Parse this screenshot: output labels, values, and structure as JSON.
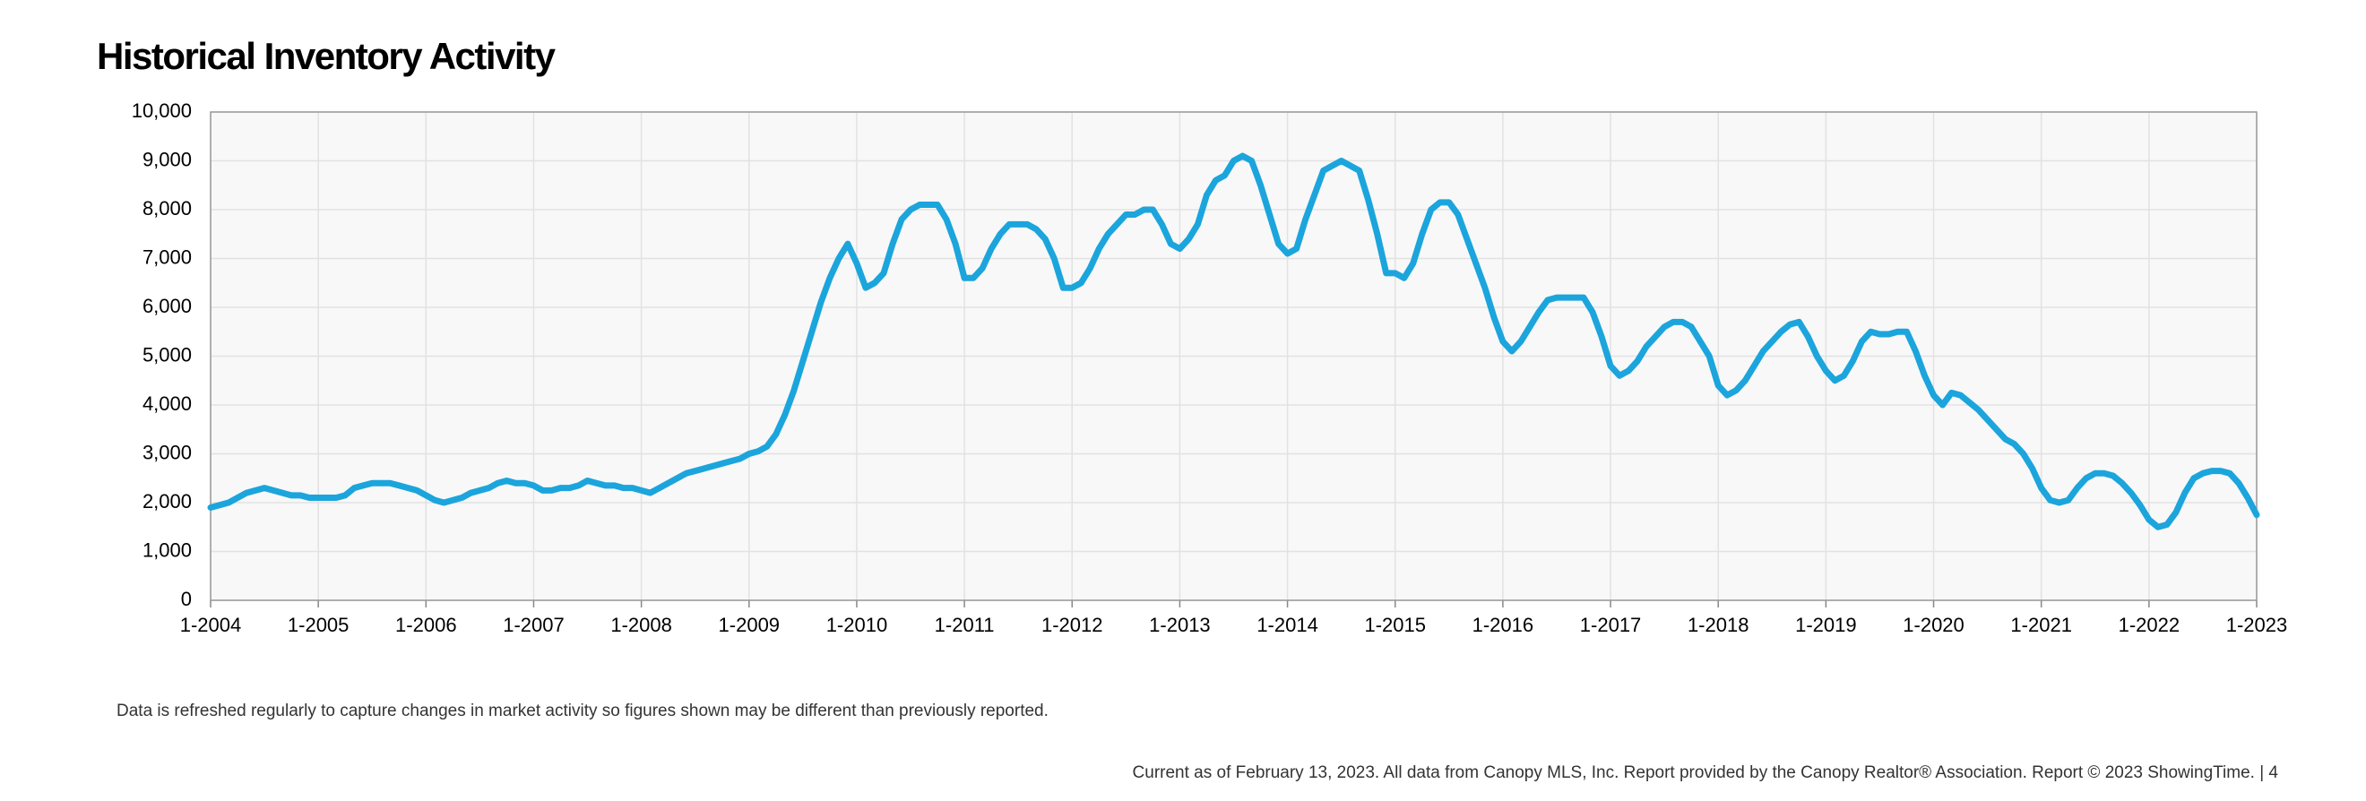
{
  "chart_data": {
    "type": "line",
    "title": "Historical Inventory Activity",
    "note": "Data is refreshed regularly to capture changes in market activity so figures shown may be different than previously reported.",
    "footer": "Current as of February 13, 2023. All data from Canopy MLS, Inc. Report provided by the Canopy Realtor® Association. Report © 2023 ShowingTime.  |  4",
    "color": "#1ba5dc",
    "grid": true,
    "categories": [
      "1-2004",
      null,
      null,
      null,
      null,
      null,
      null,
      null,
      null,
      null,
      null,
      null,
      "1-2005",
      null,
      null,
      null,
      null,
      null,
      null,
      null,
      null,
      null,
      null,
      null,
      "1-2006",
      null,
      null,
      null,
      null,
      null,
      null,
      null,
      null,
      null,
      null,
      null,
      "1-2007",
      null,
      null,
      null,
      null,
      null,
      null,
      null,
      null,
      null,
      null,
      null,
      "1-2008",
      null,
      null,
      null,
      null,
      null,
      null,
      null,
      null,
      null,
      null,
      null,
      "1-2009",
      null,
      null,
      null,
      null,
      null,
      null,
      null,
      null,
      null,
      null,
      null,
      "1-2010",
      null,
      null,
      null,
      null,
      null,
      null,
      null,
      null,
      null,
      null,
      null,
      "1-2011",
      null,
      null,
      null,
      null,
      null,
      null,
      null,
      null,
      null,
      null,
      null,
      "1-2012",
      null,
      null,
      null,
      null,
      null,
      null,
      null,
      null,
      null,
      null,
      null,
      "1-2013",
      null,
      null,
      null,
      null,
      null,
      null,
      null,
      null,
      null,
      null,
      null,
      "1-2014",
      null,
      null,
      null,
      null,
      null,
      null,
      null,
      null,
      null,
      null,
      null,
      "1-2015",
      null,
      null,
      null,
      null,
      null,
      null,
      null,
      null,
      null,
      null,
      null,
      "1-2016",
      null,
      null,
      null,
      null,
      null,
      null,
      null,
      null,
      null,
      null,
      null,
      "1-2017",
      null,
      null,
      null,
      null,
      null,
      null,
      null,
      null,
      null,
      null,
      null,
      "1-2018",
      null,
      null,
      null,
      null,
      null,
      null,
      null,
      null,
      null,
      null,
      null,
      "1-2019",
      null,
      null,
      null,
      null,
      null,
      null,
      null,
      null,
      null,
      null,
      null,
      "1-2020",
      null,
      null,
      null,
      null,
      null,
      null,
      null,
      null,
      null,
      null,
      null,
      "1-2021",
      null,
      null,
      null,
      null,
      null,
      null,
      null,
      null,
      null,
      null,
      null,
      "1-2022",
      null,
      null,
      null,
      null,
      null,
      null,
      null,
      null,
      null,
      null,
      null,
      "1-2023"
    ],
    "values": [
      1900,
      1950,
      2000,
      2100,
      2200,
      2250,
      2300,
      2250,
      2200,
      2150,
      2150,
      2100,
      2100,
      2100,
      2100,
      2150,
      2300,
      2350,
      2400,
      2400,
      2400,
      2350,
      2300,
      2250,
      2150,
      2050,
      2000,
      2050,
      2100,
      2200,
      2250,
      2300,
      2400,
      2450,
      2400,
      2400,
      2350,
      2250,
      2250,
      2300,
      2300,
      2350,
      2450,
      2400,
      2350,
      2350,
      2300,
      2300,
      2250,
      2200,
      2300,
      2400,
      2500,
      2600,
      2650,
      2700,
      2750,
      2800,
      2850,
      2900,
      3000,
      3050,
      3150,
      3400,
      3800,
      4300,
      4900,
      5500,
      6100,
      6600,
      7000,
      7300,
      6900,
      6400,
      6500,
      6700,
      7300,
      7800,
      8000,
      8100,
      8100,
      8100,
      7800,
      7300,
      6600,
      6600,
      6800,
      7200,
      7500,
      7700,
      7700,
      7700,
      7600,
      7400,
      7000,
      6400,
      6400,
      6500,
      6800,
      7200,
      7500,
      7700,
      7900,
      7900,
      8000,
      8000,
      7700,
      7300,
      7200,
      7400,
      7700,
      8300,
      8600,
      8700,
      9000,
      9100,
      9000,
      8500,
      7900,
      7300,
      7100,
      7200,
      7800,
      8300,
      8800,
      8900,
      9000,
      8900,
      8800,
      8200,
      7500,
      6700,
      6700,
      6600,
      6900,
      7500,
      8000,
      8150,
      8150,
      7900,
      7400,
      6900,
      6400,
      5800,
      5300,
      5100,
      5300,
      5600,
      5900,
      6150,
      6200,
      6200,
      6200,
      6200,
      5900,
      5400,
      4800,
      4600,
      4700,
      4900,
      5200,
      5400,
      5600,
      5700,
      5700,
      5600,
      5300,
      5000,
      4400,
      4200,
      4300,
      4500,
      4800,
      5100,
      5300,
      5500,
      5650,
      5700,
      5400,
      5000,
      4700,
      4500,
      4600,
      4900,
      5300,
      5500,
      5450,
      5450,
      5500,
      5500,
      5100,
      4600,
      4200,
      4000,
      4250,
      4200,
      4050,
      3900,
      3700,
      3500,
      3300,
      3200,
      3000,
      2700,
      2300,
      2050,
      2000,
      2050,
      2300,
      2500,
      2600,
      2600,
      2550,
      2400,
      2200,
      1950,
      1650,
      1500,
      1550,
      1800,
      2200,
      2500,
      2600,
      2650,
      2650,
      2600,
      2400,
      2100,
      1750
    ],
    "ylim": [
      0,
      10000
    ],
    "yticks": [
      0,
      {
        "value": 1000,
        "label": "1,000"
      },
      {
        "value": 2000,
        "label": "2,000"
      },
      {
        "value": 3000,
        "label": "3,000"
      },
      {
        "value": 4000,
        "label": "4,000"
      },
      {
        "value": 5000,
        "label": "5,000"
      },
      {
        "value": 6000,
        "label": "6,000"
      },
      {
        "value": 7000,
        "label": "7,000"
      },
      {
        "value": 8000,
        "label": "8,000"
      },
      {
        "value": 9000,
        "label": "9,000"
      },
      {
        "value": 10000,
        "label": "10,000"
      }
    ]
  }
}
